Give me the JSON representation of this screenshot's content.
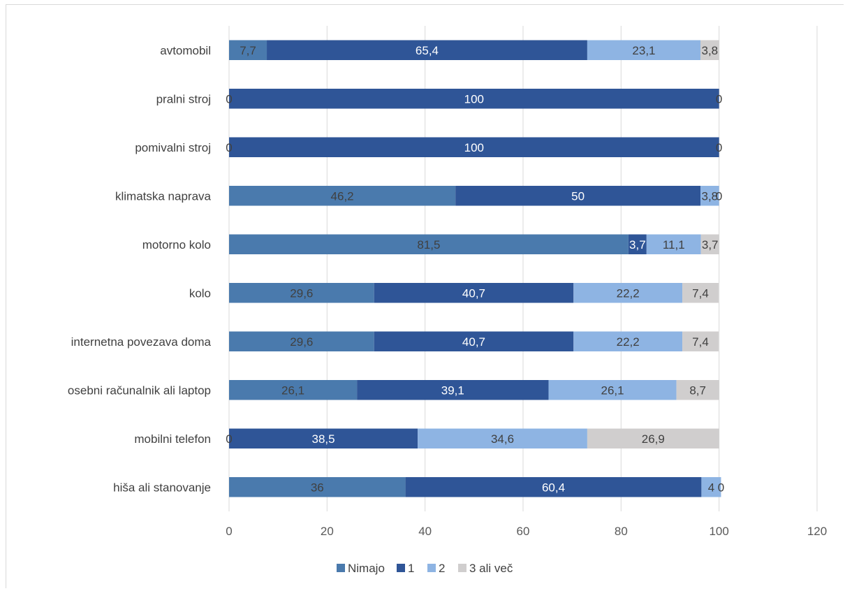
{
  "chart_data": {
    "type": "bar",
    "orientation": "horizontal",
    "stacked": true,
    "title": "",
    "xlabel": "",
    "ylabel": "",
    "xlim": [
      0,
      120
    ],
    "x_ticks": [
      0,
      20,
      40,
      60,
      80,
      100,
      120
    ],
    "grid": true,
    "legend_position": "bottom",
    "categories": [
      "avtomobil",
      "pralni stroj",
      "pomivalni stroj",
      "klimatska naprava",
      "motorno kolo",
      "kolo",
      "internetna povezava doma",
      "osebni računalnik ali laptop",
      "mobilni telefon",
      "hiša ali stanovanje"
    ],
    "series": [
      {
        "name": "Nimajo",
        "color": "#4a7aad",
        "label_color": "#404040",
        "values": [
          7.7,
          0,
          0,
          46.2,
          81.5,
          29.6,
          29.6,
          26.1,
          0,
          36
        ],
        "labels": [
          "7,7",
          "0",
          "0",
          "46,2",
          "81,5",
          "29,6",
          "29,6",
          "26,1",
          "0",
          "36"
        ]
      },
      {
        "name": "1",
        "color": "#2f5597",
        "label_color": "#ffffff",
        "values": [
          65.4,
          100,
          100,
          50,
          3.7,
          40.7,
          40.7,
          39.1,
          38.5,
          60.4
        ],
        "labels": [
          "65,4",
          "100",
          "100",
          "50",
          "3,7",
          "40,7",
          "40,7",
          "39,1",
          "38,5",
          "60,4"
        ]
      },
      {
        "name": "2",
        "color": "#8eb4e3",
        "label_color": "#404040",
        "values": [
          23.1,
          0,
          0,
          3.8,
          11.1,
          22.2,
          22.2,
          26.1,
          34.6,
          4
        ],
        "labels": [
          "23,1",
          "",
          "",
          "3,8",
          "11,1",
          "22,2",
          "22,2",
          "26,1",
          "34,6",
          "4"
        ]
      },
      {
        "name": "3 ali več",
        "color": "#d0cece",
        "label_color": "#404040",
        "values": [
          3.8,
          0,
          0,
          0,
          3.7,
          7.4,
          7.4,
          8.7,
          26.9,
          0
        ],
        "labels": [
          "3,8",
          "0",
          "0",
          "0",
          "3,7",
          "7,4",
          "7,4",
          "8,7",
          "26,9",
          "0"
        ]
      }
    ]
  }
}
